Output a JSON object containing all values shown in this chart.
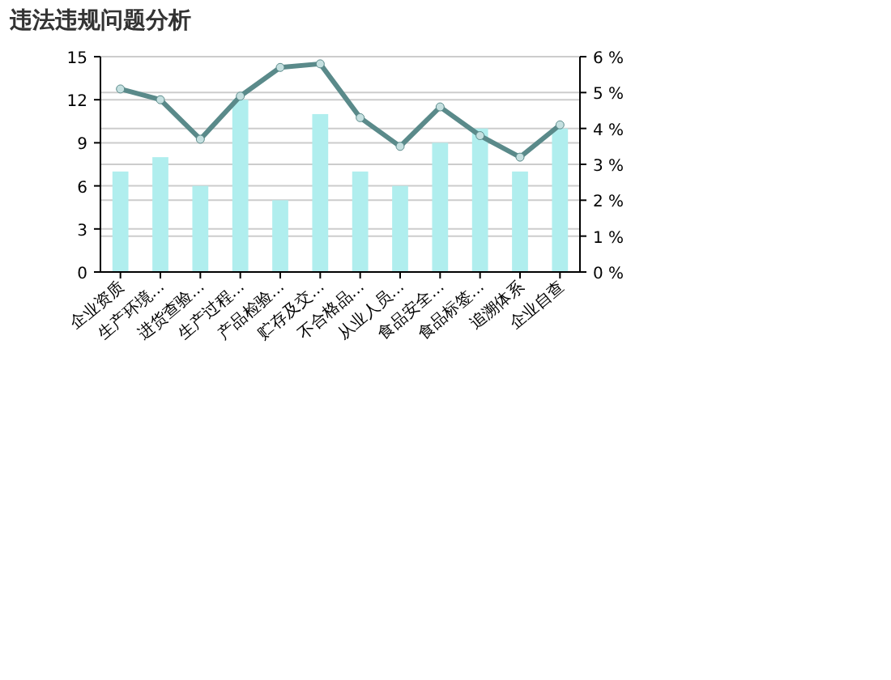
{
  "chart_data": {
    "type": "bar",
    "title": "违法违规问题分析",
    "categories": [
      "企业资质",
      "生产环境...",
      "进货查验...",
      "生产过程...",
      "产品检验...",
      "贮存及交...",
      "不合格品...",
      "从业人员...",
      "食品安全...",
      "食品标签...",
      "追溯体系",
      "企业自查"
    ],
    "series": [
      {
        "color": "#b0eeee",
        "values": [
          7,
          8,
          6,
          12,
          5,
          11,
          7,
          6,
          9,
          10,
          7,
          10
        ]
      },
      {
        "type": "line",
        "axis": "y2",
        "color": "#5a8a8a",
        "marker": "circle",
        "values": [
          5.1,
          4.8,
          3.7,
          4.9,
          5.7,
          5.8,
          4.3,
          3.5,
          4.6,
          3.8,
          3.2,
          4.1
        ]
      }
    ],
    "ylim": [
      0,
      15
    ],
    "yticks": [
      0,
      3,
      6,
      9,
      12,
      15
    ],
    "y2lim": [
      0,
      6
    ],
    "y2ticks": [
      {
        "value": 0,
        "label": "0 %"
      },
      {
        "value": 1,
        "label": "1 %"
      },
      {
        "value": 2,
        "label": "2 %"
      },
      {
        "value": 3,
        "label": "3 %"
      },
      {
        "value": 4,
        "label": "4 %"
      },
      {
        "value": 5,
        "label": "5 %"
      },
      {
        "value": 6,
        "label": "6 %"
      }
    ],
    "grid": true
  }
}
